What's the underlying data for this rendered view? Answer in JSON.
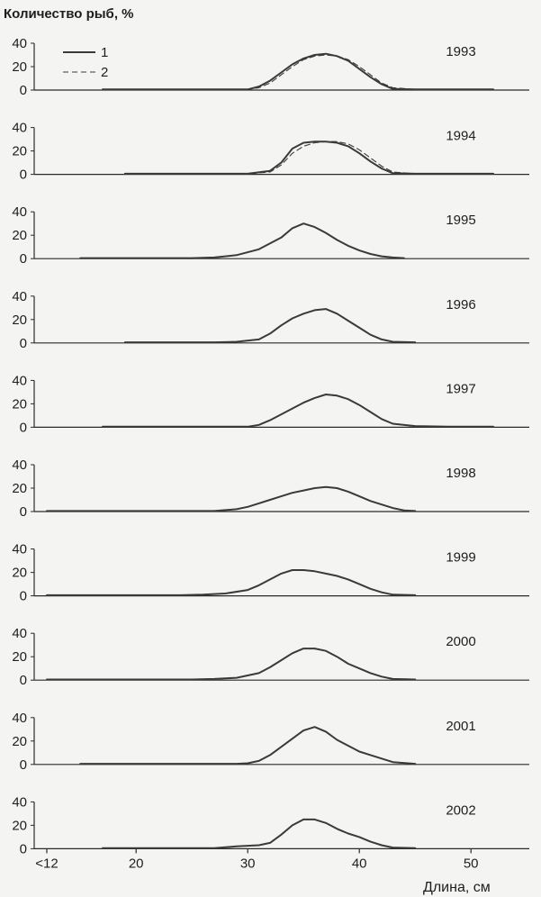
{
  "chart_data": {
    "type": "line",
    "ylabel": "Количество рыб, %",
    "xlabel": "Длина, см",
    "x_ticks": [
      {
        "x": 12,
        "label": "<12"
      },
      {
        "x": 20,
        "label": "20"
      },
      {
        "x": 30,
        "label": "30"
      },
      {
        "x": 40,
        "label": "40"
      },
      {
        "x": 50,
        "label": "50"
      }
    ],
    "xlim": [
      10,
      53
    ],
    "ylim": [
      0,
      40
    ],
    "y_ticks": [
      "0",
      "20",
      "40"
    ],
    "legend": {
      "position": "top-left",
      "entries": [
        {
          "label": "1",
          "style": "solid"
        },
        {
          "label": "2",
          "style": "dashed"
        }
      ]
    },
    "colors": {
      "line": "#3a3a3a",
      "axis": "#2a2a2a",
      "background": "#f4f4f2"
    },
    "panels": [
      {
        "year": "1993",
        "series": [
          {
            "name": "1",
            "style": "solid",
            "points": [
              [
                17,
                0.5
              ],
              [
                30,
                0.5
              ],
              [
                31,
                3
              ],
              [
                32,
                8
              ],
              [
                33,
                15
              ],
              [
                34,
                22
              ],
              [
                35,
                27
              ],
              [
                36,
                30
              ],
              [
                37,
                31
              ],
              [
                38,
                29
              ],
              [
                39,
                25
              ],
              [
                40,
                18
              ],
              [
                41,
                11
              ],
              [
                42,
                5
              ],
              [
                43,
                1
              ],
              [
                45,
                0.5
              ],
              [
                52,
                0.5
              ]
            ]
          },
          {
            "name": "2",
            "style": "dashed",
            "points": [
              [
                17,
                0.5
              ],
              [
                30,
                0.5
              ],
              [
                31,
                2
              ],
              [
                32,
                6
              ],
              [
                33,
                13
              ],
              [
                34,
                20
              ],
              [
                35,
                26
              ],
              [
                36,
                29
              ],
              [
                37,
                30
              ],
              [
                38,
                29
              ],
              [
                39,
                26
              ],
              [
                40,
                20
              ],
              [
                41,
                13
              ],
              [
                42,
                6
              ],
              [
                43,
                2
              ],
              [
                45,
                0.5
              ],
              [
                52,
                0.5
              ]
            ]
          }
        ]
      },
      {
        "year": "1994",
        "series": [
          {
            "name": "1",
            "style": "solid",
            "points": [
              [
                19,
                0.5
              ],
              [
                30,
                0.5
              ],
              [
                32,
                3
              ],
              [
                33,
                10
              ],
              [
                34,
                22
              ],
              [
                35,
                27
              ],
              [
                36,
                28
              ],
              [
                37,
                28
              ],
              [
                38,
                27
              ],
              [
                39,
                24
              ],
              [
                40,
                18
              ],
              [
                41,
                11
              ],
              [
                42,
                5
              ],
              [
                43,
                1
              ],
              [
                45,
                0.5
              ],
              [
                52,
                0.5
              ]
            ]
          },
          {
            "name": "2",
            "style": "dashed",
            "points": [
              [
                19,
                0.5
              ],
              [
                30,
                0.5
              ],
              [
                32,
                2
              ],
              [
                33,
                8
              ],
              [
                34,
                18
              ],
              [
                35,
                24
              ],
              [
                36,
                27
              ],
              [
                37,
                28
              ],
              [
                38,
                28
              ],
              [
                39,
                26
              ],
              [
                40,
                21
              ],
              [
                41,
                14
              ],
              [
                42,
                7
              ],
              [
                43,
                2
              ],
              [
                45,
                0.5
              ],
              [
                52,
                0.5
              ]
            ]
          }
        ]
      },
      {
        "year": "1995",
        "series": [
          {
            "name": "1",
            "style": "solid",
            "points": [
              [
                15,
                0.5
              ],
              [
                25,
                0.5
              ],
              [
                27,
                1
              ],
              [
                29,
                3
              ],
              [
                31,
                8
              ],
              [
                33,
                18
              ],
              [
                34,
                26
              ],
              [
                35,
                30
              ],
              [
                36,
                27
              ],
              [
                37,
                22
              ],
              [
                38,
                16
              ],
              [
                39,
                11
              ],
              [
                40,
                7
              ],
              [
                41,
                4
              ],
              [
                42,
                2
              ],
              [
                43,
                1
              ],
              [
                44,
                0.5
              ]
            ]
          }
        ]
      },
      {
        "year": "1996",
        "series": [
          {
            "name": "1",
            "style": "solid",
            "points": [
              [
                19,
                0.5
              ],
              [
                27,
                0.5
              ],
              [
                29,
                1
              ],
              [
                31,
                3
              ],
              [
                32,
                8
              ],
              [
                33,
                15
              ],
              [
                34,
                21
              ],
              [
                35,
                25
              ],
              [
                36,
                28
              ],
              [
                37,
                29
              ],
              [
                38,
                25
              ],
              [
                39,
                19
              ],
              [
                40,
                13
              ],
              [
                41,
                7
              ],
              [
                42,
                3
              ],
              [
                43,
                1
              ],
              [
                45,
                0.5
              ]
            ]
          }
        ]
      },
      {
        "year": "1997",
        "series": [
          {
            "name": "1",
            "style": "solid",
            "points": [
              [
                17,
                0.5
              ],
              [
                30,
                0.5
              ],
              [
                31,
                2
              ],
              [
                32,
                6
              ],
              [
                33,
                11
              ],
              [
                34,
                16
              ],
              [
                35,
                21
              ],
              [
                36,
                25
              ],
              [
                37,
                28
              ],
              [
                38,
                27
              ],
              [
                39,
                24
              ],
              [
                40,
                19
              ],
              [
                41,
                13
              ],
              [
                42,
                7
              ],
              [
                43,
                3
              ],
              [
                45,
                1
              ],
              [
                48,
                0.5
              ],
              [
                52,
                0.5
              ]
            ]
          }
        ]
      },
      {
        "year": "1998",
        "series": [
          {
            "name": "1",
            "style": "solid",
            "points": [
              [
                12,
                0.5
              ],
              [
                27,
                0.5
              ],
              [
                29,
                2
              ],
              [
                30,
                4
              ],
              [
                31,
                7
              ],
              [
                32,
                10
              ],
              [
                33,
                13
              ],
              [
                34,
                16
              ],
              [
                35,
                18
              ],
              [
                36,
                20
              ],
              [
                37,
                21
              ],
              [
                38,
                20
              ],
              [
                39,
                17
              ],
              [
                40,
                13
              ],
              [
                41,
                9
              ],
              [
                42,
                6
              ],
              [
                43,
                3
              ],
              [
                44,
                1
              ],
              [
                45,
                0.5
              ]
            ]
          }
        ]
      },
      {
        "year": "1999",
        "series": [
          {
            "name": "1",
            "style": "solid",
            "points": [
              [
                12,
                0.5
              ],
              [
                24,
                0.5
              ],
              [
                26,
                1
              ],
              [
                28,
                2
              ],
              [
                30,
                5
              ],
              [
                31,
                9
              ],
              [
                32,
                14
              ],
              [
                33,
                19
              ],
              [
                34,
                22
              ],
              [
                35,
                22
              ],
              [
                36,
                21
              ],
              [
                37,
                19
              ],
              [
                38,
                17
              ],
              [
                39,
                14
              ],
              [
                40,
                10
              ],
              [
                41,
                6
              ],
              [
                42,
                3
              ],
              [
                43,
                1
              ],
              [
                45,
                0.5
              ]
            ]
          }
        ]
      },
      {
        "year": "2000",
        "series": [
          {
            "name": "1",
            "style": "solid",
            "points": [
              [
                12,
                0.5
              ],
              [
                25,
                0.5
              ],
              [
                27,
                1
              ],
              [
                29,
                2
              ],
              [
                31,
                6
              ],
              [
                32,
                11
              ],
              [
                33,
                17
              ],
              [
                34,
                23
              ],
              [
                35,
                27
              ],
              [
                36,
                27
              ],
              [
                37,
                25
              ],
              [
                38,
                20
              ],
              [
                39,
                14
              ],
              [
                40,
                10
              ],
              [
                41,
                6
              ],
              [
                42,
                3
              ],
              [
                43,
                1
              ],
              [
                45,
                0.5
              ]
            ]
          }
        ]
      },
      {
        "year": "2001",
        "series": [
          {
            "name": "1",
            "style": "solid",
            "points": [
              [
                15,
                0.5
              ],
              [
                29,
                0.5
              ],
              [
                30,
                1
              ],
              [
                31,
                3
              ],
              [
                32,
                8
              ],
              [
                33,
                15
              ],
              [
                34,
                22
              ],
              [
                35,
                29
              ],
              [
                36,
                32
              ],
              [
                37,
                28
              ],
              [
                38,
                21
              ],
              [
                39,
                16
              ],
              [
                40,
                11
              ],
              [
                41,
                8
              ],
              [
                42,
                5
              ],
              [
                43,
                2
              ],
              [
                45,
                0.5
              ]
            ]
          }
        ]
      },
      {
        "year": "2002",
        "series": [
          {
            "name": "1",
            "style": "solid",
            "points": [
              [
                17,
                0.5
              ],
              [
                27,
                0.5
              ],
              [
                29,
                2
              ],
              [
                31,
                3
              ],
              [
                32,
                5
              ],
              [
                33,
                12
              ],
              [
                34,
                20
              ],
              [
                35,
                25
              ],
              [
                36,
                25
              ],
              [
                37,
                22
              ],
              [
                38,
                17
              ],
              [
                39,
                13
              ],
              [
                40,
                10
              ],
              [
                41,
                6
              ],
              [
                42,
                3
              ],
              [
                43,
                1
              ],
              [
                45,
                0.5
              ]
            ]
          }
        ]
      }
    ]
  }
}
